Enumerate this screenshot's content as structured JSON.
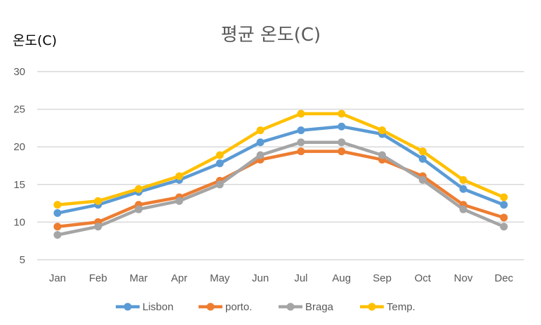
{
  "chart_data": {
    "type": "line",
    "title": "평균 온도(C)",
    "ylabel": "온도(C)",
    "xlabel": "",
    "ylim": [
      5,
      30
    ],
    "yticks": [
      5,
      10,
      15,
      20,
      25,
      30
    ],
    "grid": true,
    "legend_position": "bottom",
    "categories": [
      "Jan",
      "Feb",
      "Mar",
      "Apr",
      "May",
      "Jun",
      "Jul",
      "Aug",
      "Sep",
      "Oct",
      "Nov",
      "Dec"
    ],
    "series": [
      {
        "name": "Lisbon",
        "color": "#5B9BD5",
        "values": [
          11.2,
          12.3,
          14.0,
          15.6,
          17.8,
          20.6,
          22.2,
          22.7,
          21.7,
          18.4,
          14.4,
          12.3
        ]
      },
      {
        "name": "porto.",
        "color": "#ED7D31",
        "values": [
          9.4,
          10.0,
          12.3,
          13.3,
          15.5,
          18.3,
          19.4,
          19.4,
          18.3,
          16.1,
          12.3,
          10.6
        ]
      },
      {
        "name": "Braga",
        "color": "#A5A5A5",
        "values": [
          8.3,
          9.4,
          11.7,
          12.8,
          15.0,
          18.9,
          20.6,
          20.6,
          18.9,
          15.6,
          11.7,
          9.4
        ]
      },
      {
        "name": "Temp.",
        "color": "#FFC000",
        "values": [
          12.3,
          12.8,
          14.4,
          16.1,
          18.9,
          22.2,
          24.4,
          24.4,
          22.2,
          19.4,
          15.6,
          13.3
        ]
      }
    ]
  }
}
